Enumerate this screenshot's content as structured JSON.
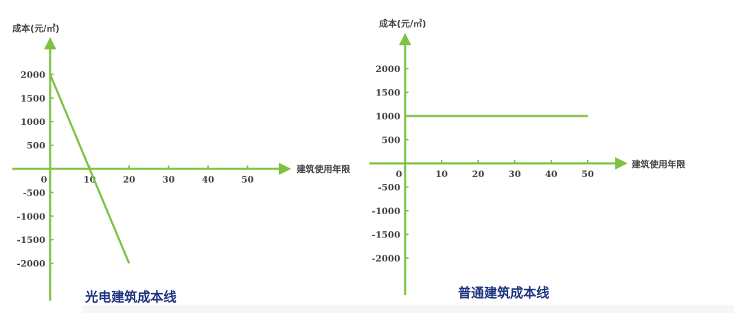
{
  "theme": {
    "axis_color": "#7dc242",
    "line_color": "#7dc242",
    "caption_color": "#1f3580",
    "tick_color": "#444444"
  },
  "chart_data": [
    {
      "type": "line",
      "caption": "光电建筑成本线",
      "xlabel": "建筑使用年限",
      "ylabel": "成本(元/㎡)",
      "x_ticks": [
        0,
        10,
        20,
        30,
        40,
        50
      ],
      "y_ticks": [
        2000,
        1500,
        1000,
        500,
        -500,
        -1000,
        -1500,
        -2000
      ],
      "xlim": [
        0,
        55
      ],
      "ylim": [
        -2000,
        2000
      ],
      "grid": false,
      "series": [
        {
          "x": [
            0,
            20
          ],
          "y": [
            2000,
            -2000
          ]
        }
      ]
    },
    {
      "type": "line",
      "caption": "普通建筑成本线",
      "xlabel": "建筑使用年限",
      "ylabel": "成本(元/㎡)",
      "x_ticks": [
        0,
        10,
        20,
        30,
        40,
        50
      ],
      "y_ticks": [
        2000,
        1500,
        1000,
        500,
        -500,
        -1000,
        -1500,
        -2000
      ],
      "xlim": [
        0,
        55
      ],
      "ylim": [
        -2000,
        2000
      ],
      "grid": false,
      "series": [
        {
          "x": [
            0,
            50
          ],
          "y": [
            1000,
            1000
          ]
        }
      ]
    }
  ]
}
